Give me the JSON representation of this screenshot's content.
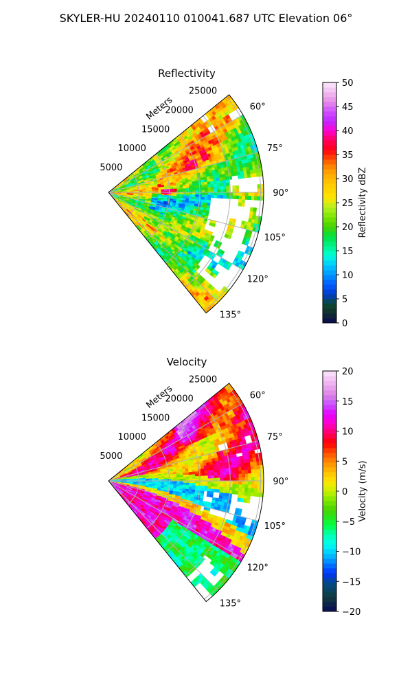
{
  "figure": {
    "suptitle": "SKYLER-HU  20240110  010041.687 UTC Elevation 06°"
  },
  "chart_data": [
    {
      "type": "heatmap",
      "projection": "polar-sector",
      "title": "Reflectivity",
      "range_axis_label": "Meters",
      "range_ticks": [
        5000,
        10000,
        15000,
        20000,
        25000
      ],
      "range_tick_labels": [
        "5000",
        "10000",
        "15000",
        "20000",
        "25000"
      ],
      "azimuth_range_deg": [
        51,
        141
      ],
      "azimuth_ticks_deg": [
        60,
        75,
        90,
        105,
        120,
        135
      ],
      "azimuth_tick_labels": [
        "60°",
        "75°",
        "90°",
        "105°",
        "120°",
        "135°"
      ],
      "grid": true,
      "colorbar": {
        "label": "Reflectivity dBZ",
        "range": [
          0,
          50
        ],
        "ticks": [
          0,
          5,
          10,
          15,
          20,
          25,
          30,
          35,
          40,
          45,
          50
        ],
        "tick_labels": [
          "0",
          "5",
          "10",
          "15",
          "20",
          "25",
          "30",
          "35",
          "40",
          "45",
          "50"
        ],
        "colormap": "pyart_HomeyerRainbow"
      },
      "field_summary": {
        "dominant_range": [
          20,
          32
        ],
        "local_maxima_approx": 40,
        "no_data_regions": [
          "east-southeast outer ranges",
          "south-southeast outer ranges"
        ]
      }
    },
    {
      "type": "heatmap",
      "projection": "polar-sector",
      "title": "Velocity",
      "range_axis_label": "Meters",
      "range_ticks": [
        5000,
        10000,
        15000,
        20000,
        25000
      ],
      "range_tick_labels": [
        "5000",
        "10000",
        "15000",
        "20000",
        "25000"
      ],
      "azimuth_range_deg": [
        51,
        141
      ],
      "azimuth_ticks_deg": [
        60,
        75,
        90,
        105,
        120,
        135
      ],
      "azimuth_tick_labels": [
        "60°",
        "75°",
        "90°",
        "105°",
        "120°",
        "135°"
      ],
      "grid": true,
      "colorbar": {
        "label": "Velocity (m/s)",
        "range": [
          -20,
          20
        ],
        "ticks": [
          -20,
          -15,
          -10,
          -5,
          0,
          5,
          10,
          15,
          20
        ],
        "tick_labels": [
          "−20",
          "−15",
          "−10",
          "−5",
          "0",
          "5",
          "10",
          "15",
          "20"
        ],
        "colormap": "pyart_balance"
      },
      "field_summary": {
        "north_sector_range": [
          3,
          15
        ],
        "central_band_range": [
          -12,
          -8
        ],
        "south_sector_range": [
          10,
          18
        ],
        "no_data_regions": [
          "east-southeast outer ranges"
        ]
      }
    }
  ]
}
